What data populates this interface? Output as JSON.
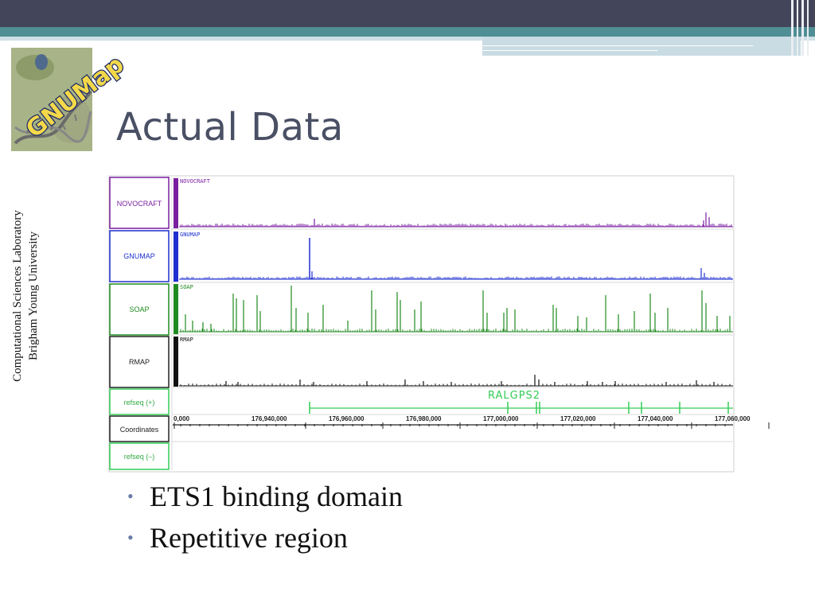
{
  "slide": {
    "title": "Actual Data",
    "side_lines": [
      "Computational Sciences Laboratory",
      "Brigham Young University"
    ],
    "logo_text": "GNUMap",
    "bullets": [
      "ETS1 binding domain",
      "Repetitive region"
    ]
  },
  "genome_browser": {
    "tracks": [
      {
        "label": "NOVOCRAFT",
        "tag": "NOVOCRAFT",
        "color": "#7a1fa0"
      },
      {
        "label": "GNUMAP",
        "tag": "GNUMAP",
        "color": "#1f2fd0"
      },
      {
        "label": "SOAP",
        "tag": "SOAP",
        "color": "#1f8a1f"
      },
      {
        "label": "RMAP",
        "tag": "RMAP",
        "color": "#111111"
      }
    ],
    "refseq_plus_label": "refseq (+)",
    "coordinates_label": "Coordinates",
    "refseq_minus_label": "refseq (–)",
    "gene_name": "RALGPS2",
    "coordinate_ticks": [
      "0,000",
      "176,940,000",
      "176,960,000",
      "176,980,000",
      "177,000,000",
      "177,020,000",
      "177,040,000",
      "177,060,000"
    ],
    "accent_green": "#33cc55"
  }
}
